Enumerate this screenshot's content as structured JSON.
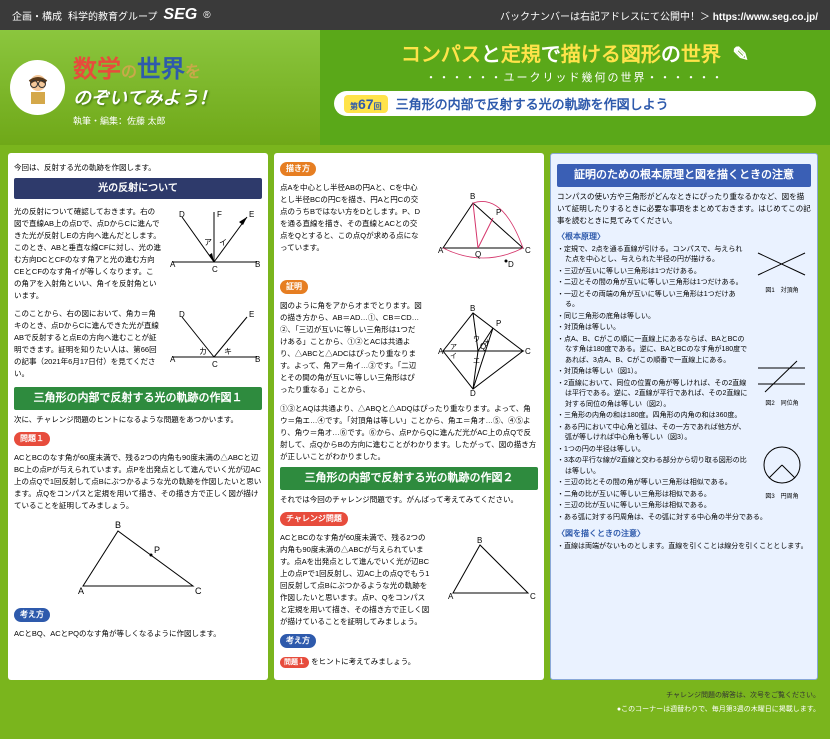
{
  "header": {
    "org_prefix": "企画・構成",
    "org_name": "科学的教育グループ",
    "logo": "SEG",
    "backnumber": "バックナンバーは右記アドレスにて公開中！＞",
    "url": "https://www.seg.co.jp/"
  },
  "banner": {
    "left": {
      "title_kanji1": "数",
      "title_kanji2": "学",
      "title_no": "の",
      "title_sekai": "世界",
      "title_wo": "を",
      "line2": "のぞいてみよう！",
      "author_label": "執筆・編集：",
      "author_name": "佐藤 太郎"
    },
    "right": {
      "compass_l1a": "コンパス",
      "compass_l1b": "と",
      "compass_l1c": "定規",
      "compass_l1d": "で",
      "compass_l1e": "描ける",
      "compass_l1f": "図形",
      "compass_l1g": "の",
      "compass_l1h": "世界",
      "euclid": "・・・・・・ユークリッド幾何の世界・・・・・・",
      "issue_prefix": "第",
      "issue_no": "67",
      "issue_suffix": "回",
      "issue_title": "三角形の内部で反射する光の軌跡を作図しよう"
    }
  },
  "col1": {
    "intro": "今回は、反射する光の軌跡を作図します。",
    "h1": "光の反射について",
    "p1": "光の反射について確認しておきます。右の図で直線AB上の点Dで、点DからCに進んできた光が反射しEの方向へ進んだとします。このとき、ABと垂直な線CFに対し、光の進む方向DCとCFのなす角アと光の進む方向CEとCFのなす角イが等しくなります。この角アを入射角といい、角イを反射角といいます。",
    "p2": "このことから、右の図において、角カ＝角キのとき、点DからCに進んできた光が直線ABで反射すると点Eの方向へ進むことが証明できます。証明を知りたい人は、第66回の記事（2021年6月17日付）を見てください。",
    "h2": "三角形の内部で反射する光の軌跡の作図１",
    "p3": "次に、チャレンジ問題のヒントになるような問題をあつかいます。",
    "tag_problem": "問題１",
    "p4": "ACとBCのなす角が60度未満で、残る2つの内角も90度未満の△ABCと辺BC上の点Pが与えられています。点Pを出発点として進んでいく光が辺AC上の点Qで1回反射して点Bにぶつかるような光の軌跡を作図したいと思います。点Qをコンパスと定規を用いて描き、その描き方で正しく図が描けていることを証明してみましょう。",
    "tag_think": "考え方",
    "p5": "ACとBQ、ACとPQのなす角が等しくなるように作図します。"
  },
  "col2": {
    "tag_draw": "描き方",
    "p1": "点Aを中心とし半径ABの円Aと、Cを中心とし半径BCの円Cを描き、円Aと円Cの交点のうちBではない方をDとします。P、Dを通る直線を描き、その直線とACとの交点をQとすると、この点Qが求める点になっています。",
    "tag_proof": "証明",
    "p2": "図のように角をアからオまでとります。図の描き方から、AB＝AD…①、CB＝CD…②、「三辺が互いに等しい三角形は1つだけある」ことから、①②とACは共通より、△ABCと△ADCはぴったり重なります。よって、角ア＝角イ…③です。「二辺とその間の角が互いに等しい三角形はぴったり重なる」ことから、",
    "p3": "①③とAQは共通より、△ABQと△ADQはぴったり重なります。よって、角ウ＝角エ…④です。「対頂角は等しい」ことから、角エ＝角オ…⑤、④⑤より、角ウ＝角オ…⑥です。⑥から、点PからQに進んだ光がAC上の点Qで反射して、点QからBの方向に進むことがわかります。したがって、図の描き方が正しいことがわかりました。",
    "h2": "三角形の内部で反射する光の軌跡の作図２",
    "p4": "それでは今回のチャレンジ問題です。がんばって考えてみてください。",
    "tag_challenge": "チャレンジ問題",
    "p5": "ACとBCのなす角が60度未満で、残る2つの内角も90度未満の△ABCが与えられています。点Aを出発点として進んでいく光が辺BC上の点Pで1回反射し、辺AC上の点Qでもう1回反射して点Bにぶつかるような光の軌跡を作図したいと思います。点P、Qをコンパスと定規を用いて描き、その描き方で正しく図が描けていることを証明してみましょう。",
    "tag_think": "考え方",
    "tag_prob_ref": "問題１",
    "p6": "をヒントに考えてみましょう。"
  },
  "col3": {
    "title": "証明のための根本原理と図を描くときの注意",
    "intro": "コンパスの使い方や三角形がどんなときにぴったり重なるかなど、図を描いて証明したりするときに必要な事項をまとめておきます。はじめてこの記事を読むときに見てみてください。",
    "sub1": "〈根本原理〉",
    "items1": [
      "定規で、2点を通る直線が引ける。コンパスで、与えられた点を中心とし、与えられた半径の円が描ける。",
      "三辺が互いに等しい三角形は1つだけある。",
      "二辺とその間の角が互いに等しい三角形は1つだけある。",
      "一辺とその両端の角が互いに等しい三角形は1つだけある。",
      "同じ三角形の底角は等しい。",
      "対頂角は等しい。",
      "点A、B、Cがこの順に一直線上にあるならば、BAとBCのなす角は180度である。逆に、BAとBCのなす角が180度であれば、3点A、B、Cがこの順番で一直線上にある。",
      "対頂角は等しい（図1）。",
      "2直線において、同位の位置の角が等しければ、その2直線は平行である。逆に、2直線が平行であれば、その2直線に対する同位の角は等しい（図2）。",
      "三角形の内角の和は180度。四角形の内角の和は360度。",
      "ある円において中心角と弧は、その一方であれば他方が、弧が等しければ中心角も等しい（図3）。",
      "1つの円の半径は等しい。",
      "3本の平行な線が2直線と交わる部分から切り取る図形の比は等しい。",
      "三辺の比とその間の角が等しい三角形は相似である。",
      "二角の比が互いに等しい三角形は相似である。",
      "三辺の比が互いに等しい三角形は相似である。",
      "ある弧に対する円周角は、その弧に対する中心角の半分である。"
    ],
    "sub2": "〈図を描くときの注意〉",
    "items2": [
      "直線は両端がないものとします。直線を引くことは線分を引くこととします。"
    ],
    "fig1_label": "図1　対頂角",
    "fig2_label": "図2　同位角",
    "fig3_label": "図3　円周角"
  },
  "footer": {
    "note_l": "チャレンジ問題の解答は、次号をご覧ください。",
    "note_r": "●このコーナーは週替わりで、毎月第3週の木曜日に掲載します。"
  },
  "colors": {
    "bg": "#7ab51d",
    "navy": "#2e3a6b",
    "green": "#2e8b3e",
    "blue": "#2e5aac",
    "orange": "#e67e22",
    "red": "#e74c3c",
    "yellow": "#ffe34a",
    "col3bg": "#eaf2ff"
  }
}
